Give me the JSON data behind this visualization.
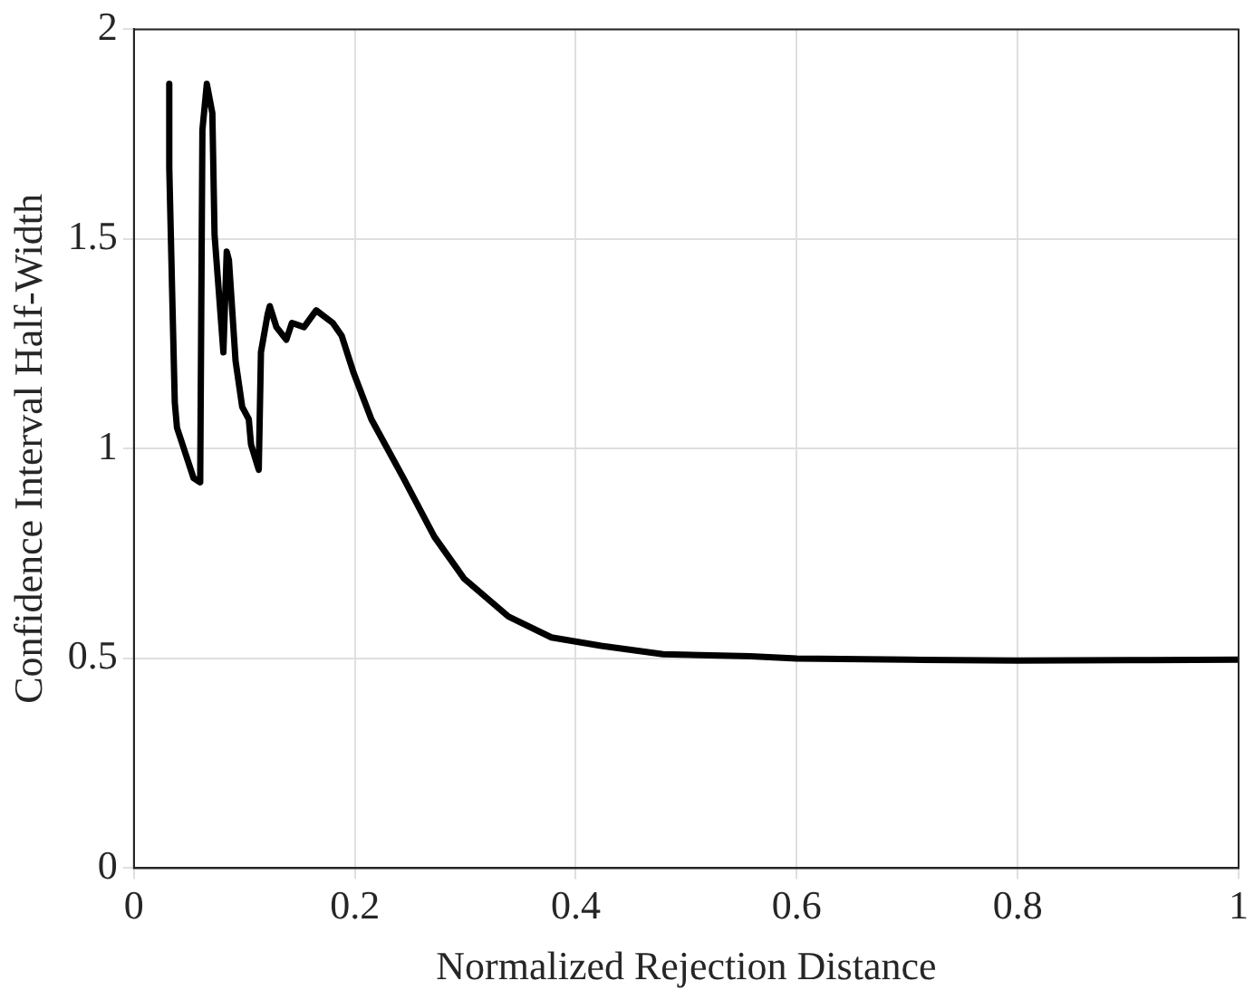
{
  "chart_data": {
    "type": "line",
    "xlabel": "Normalized Rejection Distance",
    "ylabel": "Confidence Interval Half-Width",
    "xlim": [
      0,
      1
    ],
    "xticks": [
      0,
      0.2,
      0.4,
      0.6,
      0.8,
      1
    ],
    "ylim": [
      0,
      2
    ],
    "yticks": [
      0,
      0.5,
      1,
      1.5,
      2
    ],
    "grid": true,
    "legend": false,
    "marker": "none",
    "line_style": "solid",
    "series": [
      {
        "color": "#000000",
        "x": [
          0.032,
          0.032,
          0.035,
          0.037,
          0.039,
          0.044,
          0.054,
          0.06,
          0.062,
          0.066,
          0.071,
          0.073,
          0.081,
          0.084,
          0.086,
          0.092,
          0.098,
          0.104,
          0.106,
          0.113,
          0.115,
          0.121,
          0.123,
          0.129,
          0.138,
          0.143,
          0.154,
          0.165,
          0.18,
          0.188,
          0.199,
          0.215,
          0.244,
          0.272,
          0.299,
          0.339,
          0.378,
          0.423,
          0.479,
          0.558,
          0.6,
          0.7,
          0.8,
          0.9,
          1
        ],
        "values": [
          1.87,
          1.67,
          1.33,
          1.11,
          1.05,
          1.01,
          0.93,
          0.92,
          1.76,
          1.87,
          1.8,
          1.51,
          1.23,
          1.47,
          1.45,
          1.21,
          1.1,
          1.07,
          1.01,
          0.95,
          1.23,
          1.32,
          1.34,
          1.29,
          1.26,
          1.3,
          1.29,
          1.33,
          1.3,
          1.27,
          1.18,
          1.07,
          0.93,
          0.79,
          0.69,
          0.6,
          0.55,
          0.53,
          0.51,
          0.505,
          0.5,
          0.497,
          0.495,
          0.496,
          0.497
        ]
      }
    ]
  }
}
